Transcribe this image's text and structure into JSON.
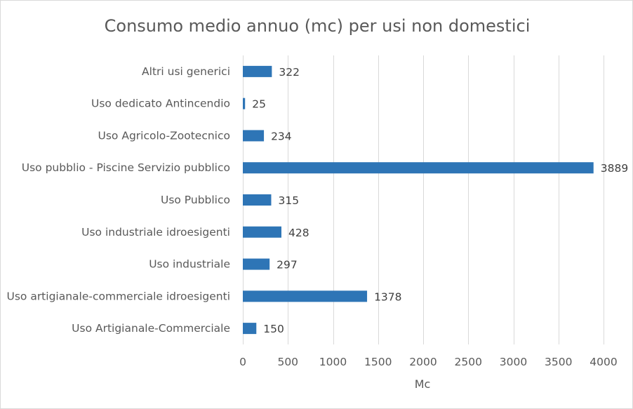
{
  "chart_data": {
    "type": "bar",
    "orientation": "horizontal",
    "title": "Consumo medio annuo (mc) per usi non domestici",
    "xlabel": "Mc",
    "ylabel": "",
    "categories": [
      "Altri usi generici",
      "Uso dedicato Antincendio",
      "Uso Agricolo-Zootecnico",
      "Uso pubblio - Piscine Servizio pubblico",
      "Uso Pubblico",
      "Uso industriale idroesigenti",
      "Uso industriale",
      "Uso artigianale-commerciale idroesigenti",
      "Uso Artigianale-Commerciale"
    ],
    "values": [
      322,
      25,
      234,
      3889,
      315,
      428,
      297,
      1378,
      150
    ],
    "xlim": [
      0,
      4000
    ],
    "xticks": [
      0,
      500,
      1000,
      1500,
      2000,
      2500,
      3000,
      3500,
      4000
    ],
    "grid": "vertical",
    "legend": "none",
    "bar_color": "#2e75b6"
  }
}
